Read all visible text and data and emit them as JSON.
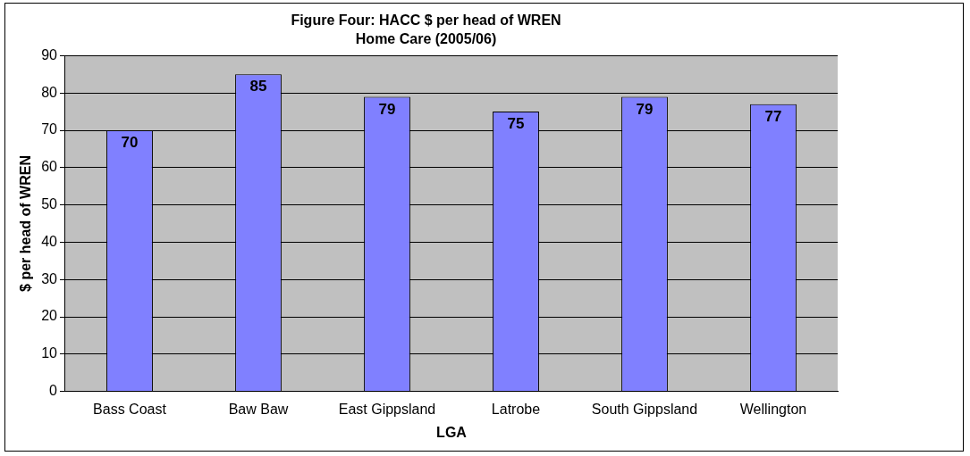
{
  "chart_data": {
    "type": "bar",
    "title": "Figure Four: HACC $ per head of WREN",
    "subtitle": "Home Care (2005/06)",
    "xlabel": "LGA",
    "ylabel": "$ per head of WREN",
    "categories": [
      "Bass Coast",
      "Baw Baw",
      "East Gippsland",
      "Latrobe",
      "South Gippsland",
      "Wellington"
    ],
    "values": [
      70,
      85,
      79,
      75,
      79,
      77
    ],
    "color": "#8080ff",
    "ylim": [
      0,
      90
    ],
    "yticks": [
      0,
      10,
      20,
      30,
      40,
      50,
      60,
      70,
      80,
      90
    ],
    "grid": "y",
    "data_labels": true,
    "legend": false
  }
}
